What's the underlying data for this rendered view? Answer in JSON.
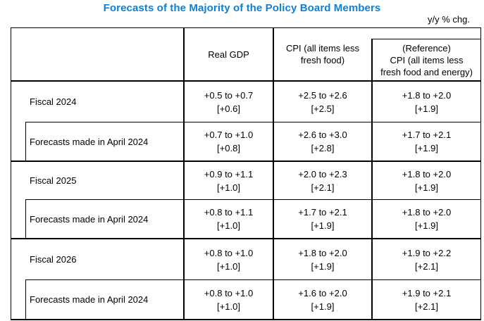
{
  "title": "Forecasts of the Majority of the Policy Board Members",
  "unit_label": "y/y % chg.",
  "colors": {
    "title_blue": "#0e80d6",
    "border_black": "#000000",
    "background": "#ffffff"
  },
  "table": {
    "column_headers": [
      "",
      "Real GDP",
      "CPI (all items less\nfresh food)",
      "(Reference)\nCPI (all items less\nfresh food and energy)"
    ],
    "rows": [
      {
        "label": "Fiscal 2024",
        "type": "fiscal-year",
        "gdp": {
          "range": "+0.5 to +0.7",
          "median": "[+0.6]"
        },
        "cpi": {
          "range": "+2.5 to +2.6",
          "median": "[+2.5]"
        },
        "cpi_ex_energy": {
          "range": "+1.8 to +2.0",
          "median": "[+1.9]"
        }
      },
      {
        "label": "Forecasts made in April 2024",
        "type": "previous-forecast",
        "gdp": {
          "range": "+0.7 to +1.0",
          "median": "[+0.8]"
        },
        "cpi": {
          "range": "+2.6 to +3.0",
          "median": "[+2.8]"
        },
        "cpi_ex_energy": {
          "range": "+1.7 to +2.1",
          "median": "[+1.9]"
        }
      },
      {
        "label": "Fiscal 2025",
        "type": "fiscal-year",
        "gdp": {
          "range": "+0.9 to +1.1",
          "median": "[+1.0]"
        },
        "cpi": {
          "range": "+2.0 to +2.3",
          "median": "[+2.1]"
        },
        "cpi_ex_energy": {
          "range": "+1.8 to +2.0",
          "median": "[+1.9]"
        }
      },
      {
        "label": "Forecasts made in April 2024",
        "type": "previous-forecast",
        "gdp": {
          "range": "+0.8 to +1.1",
          "median": "[+1.0]"
        },
        "cpi": {
          "range": "+1.7 to +2.1",
          "median": "[+1.9]"
        },
        "cpi_ex_energy": {
          "range": "+1.8 to +2.0",
          "median": "[+1.9]"
        }
      },
      {
        "label": "Fiscal 2026",
        "type": "fiscal-year",
        "gdp": {
          "range": "+0.8 to +1.0",
          "median": "[+1.0]"
        },
        "cpi": {
          "range": "+1.8 to +2.0",
          "median": "[+1.9]"
        },
        "cpi_ex_energy": {
          "range": "+1.9 to +2.2",
          "median": "[+2.1]"
        }
      },
      {
        "label": "Forecasts made in April 2024",
        "type": "previous-forecast",
        "gdp": {
          "range": "+0.8 to +1.0",
          "median": "[+1.0]"
        },
        "cpi": {
          "range": "+1.6 to +2.0",
          "median": "[+1.9]"
        },
        "cpi_ex_energy": {
          "range": "+1.9 to +2.1",
          "median": "[+2.1]"
        }
      }
    ]
  }
}
